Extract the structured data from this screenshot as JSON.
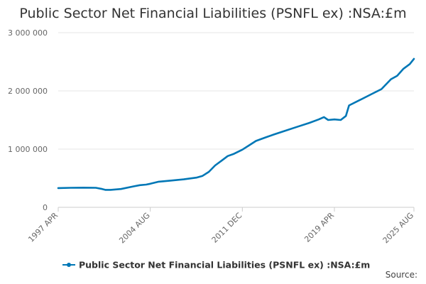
{
  "chart_data": {
    "type": "line",
    "title": "Public Sector Net Financial Liabilities (PSNFL ex) :NSA:£m",
    "xlabel": "",
    "ylabel": "",
    "ylim": [
      0,
      3000000
    ],
    "yticks": [
      {
        "value": 0,
        "label": "0"
      },
      {
        "value": 1000000,
        "label": "1 000 000"
      },
      {
        "value": 2000000,
        "label": "2 000 000"
      },
      {
        "value": 3000000,
        "label": "3 000 000"
      }
    ],
    "xlim": [
      "1997-04",
      "2025-08"
    ],
    "xticks": [
      {
        "value": "1997-04",
        "label": "1997 APR"
      },
      {
        "value": "2004-08",
        "label": "2004 AUG"
      },
      {
        "value": "2011-12",
        "label": "2011 DEC"
      },
      {
        "value": "2019-04",
        "label": "2019 APR"
      },
      {
        "value": "2025-08",
        "label": "2025 AUG"
      }
    ],
    "grid": true,
    "legend_position": "bottom",
    "series": [
      {
        "name": "Public Sector Net Financial Liabilities (PSNFL ex) :NSA:£m",
        "color": "#0077b6",
        "points": [
          [
            "1997-04",
            330000
          ],
          [
            "1998-04",
            335000
          ],
          [
            "1999-04",
            338000
          ],
          [
            "2000-04",
            335000
          ],
          [
            "2000-10",
            315000
          ],
          [
            "2001-01",
            300000
          ],
          [
            "2001-06",
            300000
          ],
          [
            "2002-04",
            315000
          ],
          [
            "2003-04",
            360000
          ],
          [
            "2003-10",
            380000
          ],
          [
            "2004-04",
            390000
          ],
          [
            "2004-08",
            405000
          ],
          [
            "2005-04",
            440000
          ],
          [
            "2006-04",
            460000
          ],
          [
            "2007-04",
            480000
          ],
          [
            "2008-04",
            510000
          ],
          [
            "2008-10",
            540000
          ],
          [
            "2009-04",
            610000
          ],
          [
            "2009-10",
            720000
          ],
          [
            "2010-04",
            800000
          ],
          [
            "2010-10",
            880000
          ],
          [
            "2011-04",
            920000
          ],
          [
            "2011-12",
            990000
          ],
          [
            "2012-06",
            1060000
          ],
          [
            "2013-01",
            1140000
          ],
          [
            "2013-10",
            1200000
          ],
          [
            "2014-06",
            1250000
          ],
          [
            "2015-04",
            1310000
          ],
          [
            "2016-04",
            1380000
          ],
          [
            "2017-04",
            1450000
          ],
          [
            "2018-01",
            1510000
          ],
          [
            "2018-06",
            1550000
          ],
          [
            "2018-10",
            1500000
          ],
          [
            "2019-04",
            1510000
          ],
          [
            "2019-10",
            1500000
          ],
          [
            "2020-03",
            1570000
          ],
          [
            "2020-06",
            1750000
          ],
          [
            "2021-04",
            1840000
          ],
          [
            "2022-04",
            1950000
          ],
          [
            "2023-01",
            2030000
          ],
          [
            "2023-10",
            2200000
          ],
          [
            "2024-04",
            2260000
          ],
          [
            "2024-10",
            2380000
          ],
          [
            "2025-04",
            2460000
          ],
          [
            "2025-08",
            2550000
          ]
        ]
      }
    ]
  },
  "source_label": "Source:"
}
